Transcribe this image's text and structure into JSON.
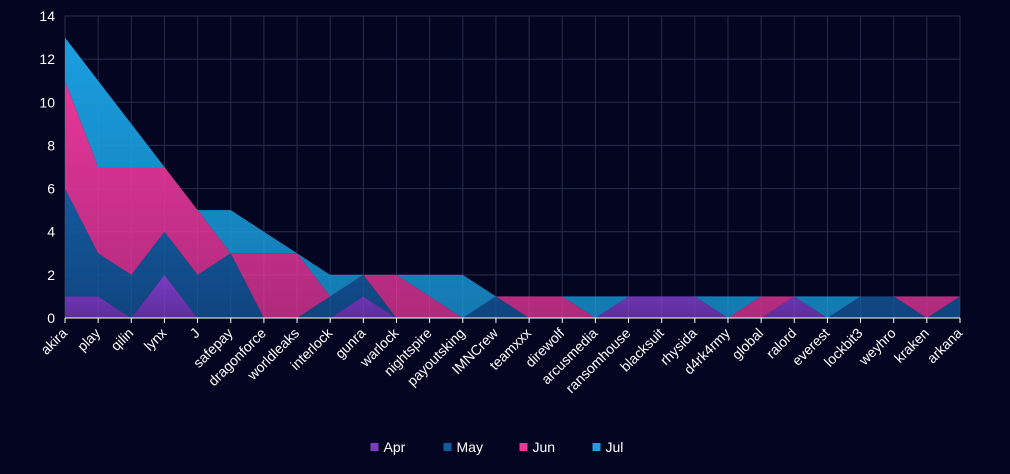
{
  "chart_data": {
    "type": "area",
    "stacked": true,
    "categories": [
      "akira",
      "play",
      "qilin",
      "lynx",
      "J",
      "safepay",
      "dragonforce",
      "worldleaks",
      "interlock",
      "gunra",
      "warlock",
      "nightspire",
      "payoutsking",
      "IMNCrew",
      "teamxxx",
      "direwolf",
      "arcusmedia",
      "ransomhouse",
      "blacksuit",
      "rhysida",
      "d4rk4rmy",
      "global",
      "ralord",
      "everest",
      "lockbit3",
      "weyhro",
      "kraken",
      "arkana"
    ],
    "series": [
      {
        "name": "Apr",
        "color": "#7b3cc4",
        "values": [
          1,
          1,
          0,
          2,
          0,
          0,
          0,
          0,
          0,
          1,
          0,
          0,
          0,
          0,
          0,
          0,
          0,
          1,
          1,
          1,
          0,
          0,
          1,
          0,
          0,
          0,
          0,
          0
        ]
      },
      {
        "name": "May",
        "color": "#145a9e",
        "values": [
          5,
          2,
          2,
          2,
          2,
          3,
          0,
          0,
          1,
          1,
          0,
          0,
          0,
          1,
          0,
          0,
          0,
          0,
          0,
          0,
          0,
          0,
          0,
          0,
          1,
          1,
          0,
          1
        ]
      },
      {
        "name": "Jun",
        "color": "#e8379a",
        "values": [
          5,
          4,
          5,
          3,
          3,
          0,
          3,
          3,
          0,
          0,
          2,
          1,
          0,
          0,
          1,
          1,
          0,
          0,
          0,
          0,
          0,
          1,
          0,
          0,
          0,
          0,
          1,
          0
        ]
      },
      {
        "name": "Jul",
        "color": "#1a9fe0",
        "values": [
          2,
          4,
          2,
          0,
          0,
          2,
          1,
          0,
          1,
          0,
          0,
          1,
          2,
          0,
          0,
          0,
          1,
          0,
          0,
          0,
          1,
          0,
          0,
          1,
          0,
          0,
          0,
          0
        ]
      }
    ],
    "ylim": [
      0,
      14
    ],
    "yticks": [
      "0",
      "2",
      "4",
      "6",
      "8",
      "10",
      "12",
      "14"
    ],
    "grid": true,
    "legend_position": "bottom-center"
  }
}
